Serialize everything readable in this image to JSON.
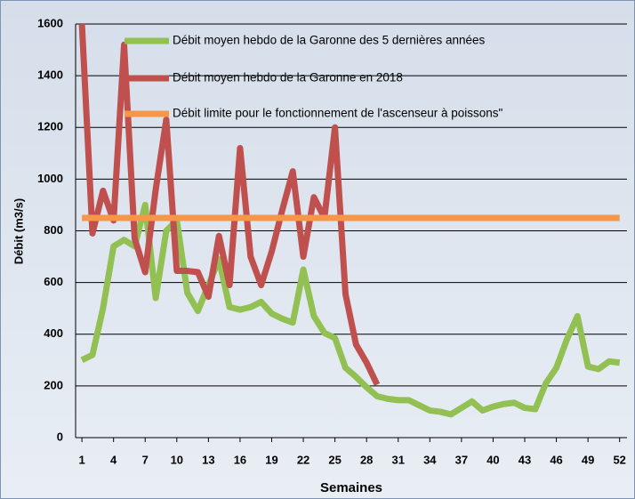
{
  "chart_data": {
    "type": "line",
    "y_label": "Débit (m3/s)",
    "x_label": "Semaines",
    "x": [
      1,
      2,
      3,
      4,
      5,
      6,
      7,
      8,
      9,
      10,
      11,
      12,
      13,
      14,
      15,
      16,
      17,
      18,
      19,
      20,
      21,
      22,
      23,
      24,
      25,
      26,
      27,
      28,
      29,
      30,
      31,
      32,
      33,
      34,
      35,
      36,
      37,
      38,
      39,
      40,
      41,
      42,
      43,
      44,
      45,
      46,
      47,
      48,
      49,
      50,
      51,
      52
    ],
    "xlim": [
      0.4,
      52.7
    ],
    "xticks": [
      1,
      4,
      7,
      10,
      13,
      16,
      19,
      22,
      25,
      28,
      31,
      34,
      37,
      40,
      43,
      46,
      49,
      52
    ],
    "ylim": [
      0,
      1600
    ],
    "yticks": [
      0,
      200,
      400,
      600,
      800,
      1000,
      1200,
      1400,
      1600
    ],
    "grid": true,
    "legend": "top",
    "series": [
      {
        "name": "Débit moyen hebdo de la Garonne des 5 dernières années",
        "color": "#92c053",
        "values": [
          300,
          320,
          500,
          740,
          765,
          740,
          900,
          540,
          800,
          840,
          560,
          490,
          590,
          690,
          505,
          495,
          505,
          525,
          480,
          460,
          445,
          650,
          470,
          405,
          385,
          270,
          235,
          195,
          160,
          150,
          145,
          145,
          125,
          105,
          100,
          90,
          115,
          140,
          105,
          120,
          130,
          135,
          115,
          110,
          210,
          270,
          380,
          470,
          275,
          265,
          295,
          290
        ]
      },
      {
        "name": "Débit moyen hebdo de la Garonne en 2018",
        "color": "#c0504d",
        "values": [
          1600,
          790,
          955,
          840,
          1520,
          770,
          640,
          960,
          1230,
          645,
          645,
          640,
          545,
          780,
          590,
          1120,
          700,
          590,
          720,
          880,
          1030,
          700,
          930,
          850,
          1200,
          555,
          360,
          290,
          205,
          null,
          null,
          null,
          null,
          null,
          null,
          null,
          null,
          null,
          null,
          null,
          null,
          null,
          null,
          null,
          null,
          null,
          null,
          null,
          null,
          null,
          null,
          null
        ]
      },
      {
        "name": "Débit limite pour le fonctionnement de l'ascenseur à poissons\"",
        "color": "#f79646",
        "values": [
          850,
          850,
          850,
          850,
          850,
          850,
          850,
          850,
          850,
          850,
          850,
          850,
          850,
          850,
          850,
          850,
          850,
          850,
          850,
          850,
          850,
          850,
          850,
          850,
          850,
          850,
          850,
          850,
          850,
          850,
          850,
          850,
          850,
          850,
          850,
          850,
          850,
          850,
          850,
          850,
          850,
          850,
          850,
          850,
          850,
          850,
          850,
          850,
          850,
          850,
          850,
          850
        ]
      }
    ]
  }
}
